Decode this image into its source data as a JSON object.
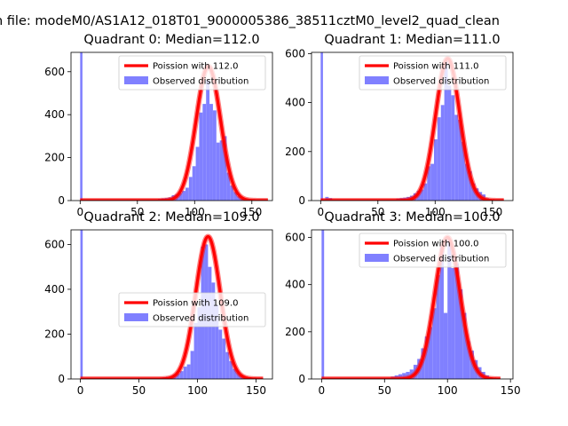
{
  "figure": {
    "suptitle": "n file: modeM0/AS1A12_018T01_9000005386_38511cztM0_level2_quad_clean"
  },
  "colors": {
    "hist": "#8080ff",
    "fit": "#ff0000",
    "fit_alpha": 0.5
  },
  "chart_data": [
    {
      "type": "bar",
      "title": "Quadrant 0: Median=112.0",
      "xlim": [
        -8,
        168
      ],
      "ylim": [
        0,
        690
      ],
      "xticks": [
        0,
        50,
        100,
        150
      ],
      "yticks": [
        0,
        200,
        400,
        600
      ],
      "median": 112.0,
      "peak": 625,
      "fit_xmax": 164,
      "legend": [
        "Poission with 112.0",
        "Observed distribution"
      ],
      "legend_loc": "upper right",
      "hist_bins": [
        [
          0,
          2,
          690
        ],
        [
          62,
          65,
          5
        ],
        [
          65,
          68,
          5
        ],
        [
          68,
          71,
          8
        ],
        [
          71,
          74,
          10
        ],
        [
          74,
          77,
          12
        ],
        [
          77,
          80,
          15
        ],
        [
          80,
          83,
          25
        ],
        [
          83,
          86,
          30
        ],
        [
          86,
          89,
          35
        ],
        [
          89,
          92,
          45
        ],
        [
          92,
          95,
          60
        ],
        [
          95,
          98,
          110
        ],
        [
          98,
          101,
          160
        ],
        [
          101,
          104,
          250
        ],
        [
          104,
          107,
          410
        ],
        [
          107,
          110,
          450
        ],
        [
          110,
          113,
          560
        ],
        [
          113,
          116,
          450
        ],
        [
          116,
          119,
          420
        ],
        [
          119,
          122,
          270
        ],
        [
          122,
          125,
          280
        ],
        [
          125,
          128,
          300
        ],
        [
          128,
          131,
          130
        ],
        [
          131,
          134,
          70
        ],
        [
          134,
          137,
          40
        ],
        [
          137,
          140,
          20
        ],
        [
          140,
          143,
          10
        ],
        [
          143,
          146,
          5
        ]
      ]
    },
    {
      "type": "bar",
      "title": "Quadrant 1: Median=111.0",
      "xlim": [
        -8,
        168
      ],
      "ylim": [
        0,
        605
      ],
      "xticks": [
        0,
        50,
        100,
        150
      ],
      "yticks": [
        0,
        200,
        400,
        600
      ],
      "median": 111.0,
      "peak": 580,
      "fit_xmax": 160,
      "legend": [
        "Poission with 111.0",
        "Observed distribution"
      ],
      "legend_loc": "upper right",
      "hist_bins": [
        [
          0,
          2,
          605
        ],
        [
          4,
          7,
          15
        ],
        [
          7,
          10,
          10
        ],
        [
          10,
          13,
          5
        ],
        [
          60,
          63,
          5
        ],
        [
          63,
          66,
          5
        ],
        [
          66,
          69,
          8
        ],
        [
          69,
          72,
          10
        ],
        [
          72,
          75,
          12
        ],
        [
          75,
          78,
          15
        ],
        [
          78,
          81,
          20
        ],
        [
          81,
          84,
          30
        ],
        [
          84,
          87,
          40
        ],
        [
          87,
          90,
          45
        ],
        [
          90,
          93,
          70
        ],
        [
          93,
          96,
          140
        ],
        [
          96,
          99,
          150
        ],
        [
          99,
          102,
          250
        ],
        [
          102,
          105,
          340
        ],
        [
          105,
          108,
          390
        ],
        [
          108,
          111,
          570
        ],
        [
          111,
          114,
          470
        ],
        [
          114,
          117,
          430
        ],
        [
          117,
          120,
          350
        ],
        [
          120,
          123,
          330
        ],
        [
          123,
          126,
          240
        ],
        [
          126,
          129,
          150
        ],
        [
          129,
          132,
          120
        ],
        [
          132,
          135,
          70
        ],
        [
          135,
          138,
          50
        ],
        [
          138,
          141,
          35
        ],
        [
          141,
          144,
          25
        ],
        [
          144,
          147,
          10
        ],
        [
          147,
          150,
          5
        ]
      ]
    },
    {
      "type": "bar",
      "title": "Quadrant 2: Median=109.0",
      "xlim": [
        -8,
        164
      ],
      "ylim": [
        0,
        665
      ],
      "xticks": [
        0,
        50,
        100,
        150
      ],
      "yticks": [
        0,
        200,
        400,
        600
      ],
      "median": 109.0,
      "peak": 635,
      "fit_xmax": 156,
      "legend": [
        "Poission with 109.0",
        "Observed distribution"
      ],
      "legend_loc": "center right",
      "hist_bins": [
        [
          0,
          2,
          665
        ],
        [
          64,
          67,
          5
        ],
        [
          67,
          70,
          5
        ],
        [
          70,
          73,
          8
        ],
        [
          73,
          76,
          10
        ],
        [
          76,
          79,
          12
        ],
        [
          79,
          82,
          20
        ],
        [
          82,
          85,
          25
        ],
        [
          85,
          88,
          35
        ],
        [
          88,
          91,
          55
        ],
        [
          91,
          94,
          65
        ],
        [
          94,
          97,
          125
        ],
        [
          97,
          100,
          250
        ],
        [
          100,
          103,
          320
        ],
        [
          103,
          106,
          590
        ],
        [
          106,
          109,
          600
        ],
        [
          109,
          112,
          500
        ],
        [
          112,
          115,
          430
        ],
        [
          115,
          118,
          330
        ],
        [
          118,
          121,
          220
        ],
        [
          121,
          124,
          180
        ],
        [
          124,
          127,
          120
        ],
        [
          127,
          130,
          80
        ],
        [
          130,
          133,
          45
        ],
        [
          133,
          136,
          30
        ],
        [
          136,
          139,
          15
        ],
        [
          139,
          142,
          8
        ],
        [
          142,
          145,
          5
        ]
      ]
    },
    {
      "type": "bar",
      "title": "Quadrant 3: Median=100.0",
      "xlim": [
        -8,
        152
      ],
      "ylim": [
        0,
        632
      ],
      "xticks": [
        0,
        50,
        100,
        150
      ],
      "yticks": [
        0,
        200,
        400,
        600
      ],
      "median": 100.0,
      "peak": 600,
      "fit_xmax": 142,
      "legend": [
        "Poission with 100.0",
        "Observed distribution"
      ],
      "legend_loc": "upper right",
      "hist_bins": [
        [
          0,
          2,
          632
        ],
        [
          55,
          58,
          10
        ],
        [
          58,
          61,
          15
        ],
        [
          61,
          64,
          20
        ],
        [
          64,
          67,
          25
        ],
        [
          67,
          70,
          30
        ],
        [
          70,
          73,
          40
        ],
        [
          73,
          76,
          60
        ],
        [
          76,
          79,
          85
        ],
        [
          79,
          82,
          130
        ],
        [
          82,
          85,
          180
        ],
        [
          85,
          88,
          220
        ],
        [
          88,
          91,
          300
        ],
        [
          91,
          94,
          440
        ],
        [
          94,
          97,
          560
        ],
        [
          97,
          100,
          280
        ],
        [
          100,
          103,
          590
        ],
        [
          103,
          106,
          470
        ],
        [
          106,
          109,
          490
        ],
        [
          109,
          112,
          380
        ],
        [
          112,
          115,
          280
        ],
        [
          115,
          118,
          160
        ],
        [
          118,
          121,
          120
        ],
        [
          121,
          124,
          80
        ],
        [
          124,
          127,
          50
        ],
        [
          127,
          130,
          30
        ],
        [
          130,
          133,
          15
        ]
      ]
    }
  ]
}
